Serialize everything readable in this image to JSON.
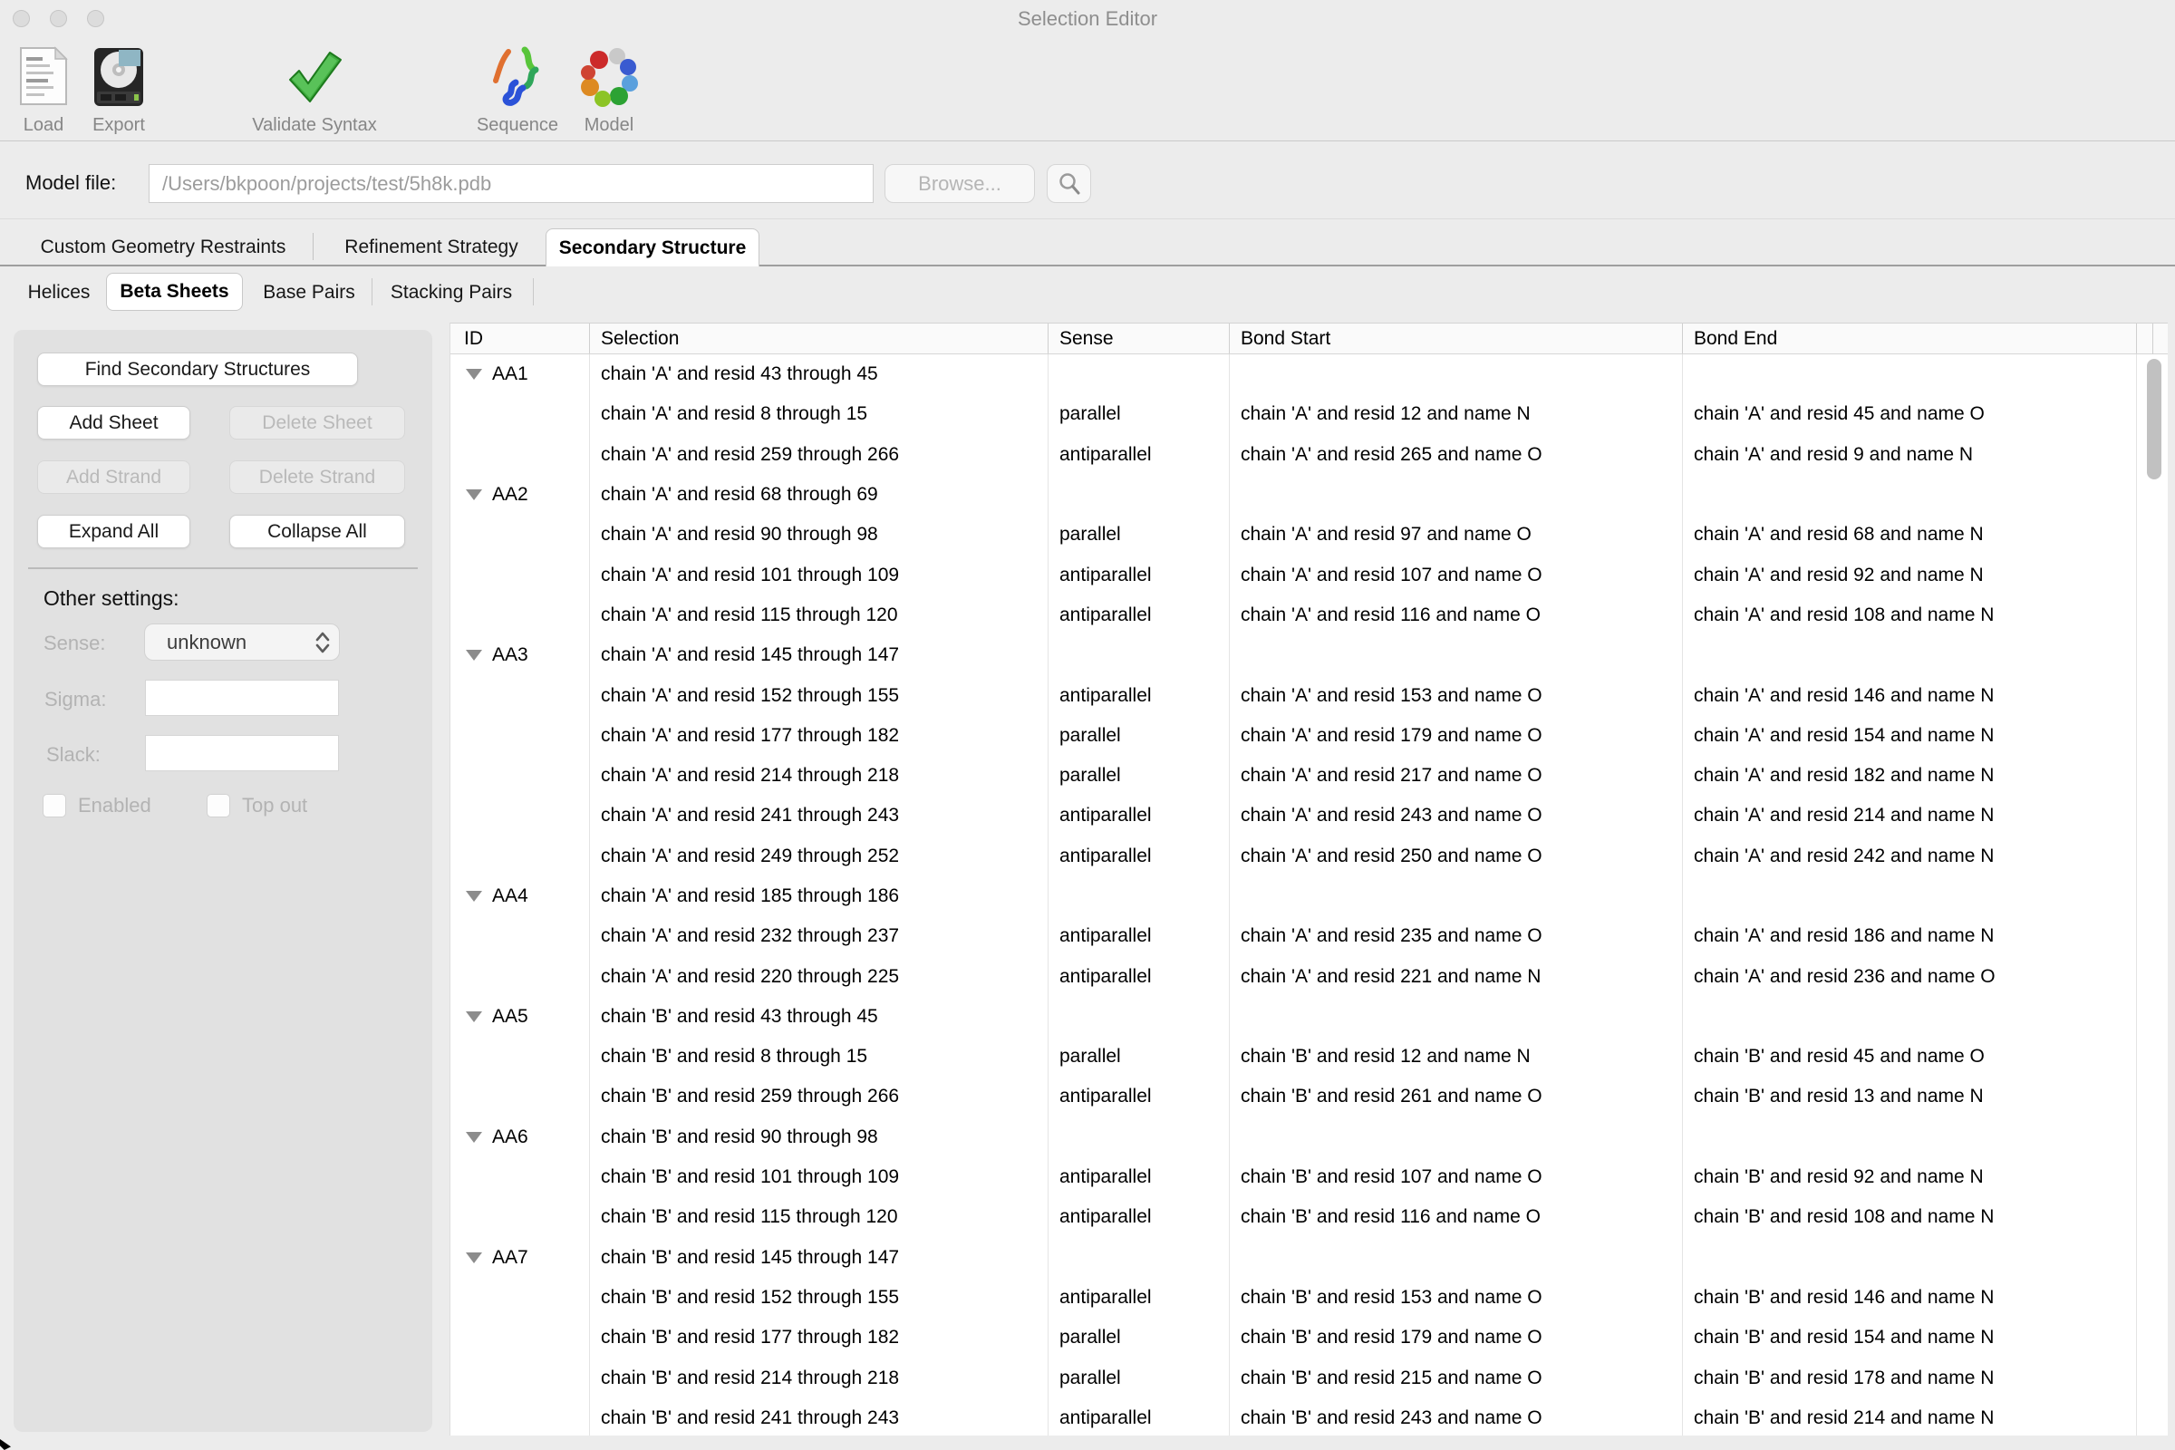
{
  "window": {
    "title": "Selection Editor"
  },
  "toolbar": {
    "items": [
      {
        "label": "Load",
        "icon": "document-icon"
      },
      {
        "label": "Export",
        "icon": "harddrive-icon"
      },
      {
        "label": "Validate Syntax",
        "icon": "green-checkmark-icon"
      },
      {
        "label": "Sequence",
        "icon": "sequence-ribbon-icon"
      },
      {
        "label": "Model",
        "icon": "molecule-model-icon"
      }
    ]
  },
  "model_file": {
    "label": "Model file:",
    "value": "/Users/bkpoon/projects/test/5h8k.pdb",
    "browse_label": "Browse...",
    "search_icon": "magnifier-icon"
  },
  "tabs": {
    "items": [
      "Custom Geometry Restraints",
      "Refinement Strategy",
      "Secondary Structure"
    ],
    "selected": "Secondary Structure"
  },
  "subtabs": {
    "items": [
      "Helices",
      "Beta Sheets",
      "Base Pairs",
      "Stacking Pairs"
    ],
    "selected": "Beta Sheets"
  },
  "sidebar": {
    "find_button": "Find Secondary Structures",
    "add_sheet": "Add Sheet",
    "delete_sheet": "Delete Sheet",
    "add_strand": "Add Strand",
    "delete_strand": "Delete Strand",
    "expand_all": "Expand All",
    "collapse_all": "Collapse All",
    "other_settings_label": "Other settings:",
    "sense_label": "Sense:",
    "sense_value": "unknown",
    "sigma_label": "Sigma:",
    "sigma_value": "",
    "slack_label": "Slack:",
    "slack_value": "",
    "enabled_label": "Enabled",
    "enabled_checked": false,
    "top_out_label": "Top out",
    "top_out_checked": false
  },
  "table": {
    "columns": [
      "ID",
      "Selection",
      "Sense",
      "Bond Start",
      "Bond End"
    ],
    "rows": [
      {
        "id": "AA1",
        "selection": "chain 'A' and resid 43 through 45",
        "sense": "",
        "bond_start": "",
        "bond_end": ""
      },
      {
        "id": "",
        "selection": "chain 'A' and resid 8 through 15",
        "sense": "parallel",
        "bond_start": "chain 'A' and resid 12 and name N",
        "bond_end": "chain 'A' and resid 45 and name O"
      },
      {
        "id": "",
        "selection": "chain 'A' and resid 259 through 266",
        "sense": "antiparallel",
        "bond_start": "chain 'A' and resid 265 and name O",
        "bond_end": "chain 'A' and resid 9 and name N"
      },
      {
        "id": "AA2",
        "selection": "chain 'A' and resid 68 through 69",
        "sense": "",
        "bond_start": "",
        "bond_end": ""
      },
      {
        "id": "",
        "selection": "chain 'A' and resid 90 through 98",
        "sense": "parallel",
        "bond_start": "chain 'A' and resid 97 and name O",
        "bond_end": "chain 'A' and resid 68 and name N"
      },
      {
        "id": "",
        "selection": "chain 'A' and resid 101 through 109",
        "sense": "antiparallel",
        "bond_start": "chain 'A' and resid 107 and name O",
        "bond_end": "chain 'A' and resid 92 and name N"
      },
      {
        "id": "",
        "selection": "chain 'A' and resid 115 through 120",
        "sense": "antiparallel",
        "bond_start": "chain 'A' and resid 116 and name O",
        "bond_end": "chain 'A' and resid 108 and name N"
      },
      {
        "id": "AA3",
        "selection": "chain 'A' and resid 145 through 147",
        "sense": "",
        "bond_start": "",
        "bond_end": ""
      },
      {
        "id": "",
        "selection": "chain 'A' and resid 152 through 155",
        "sense": "antiparallel",
        "bond_start": "chain 'A' and resid 153 and name O",
        "bond_end": "chain 'A' and resid 146 and name N"
      },
      {
        "id": "",
        "selection": "chain 'A' and resid 177 through 182",
        "sense": "parallel",
        "bond_start": "chain 'A' and resid 179 and name O",
        "bond_end": "chain 'A' and resid 154 and name N"
      },
      {
        "id": "",
        "selection": "chain 'A' and resid 214 through 218",
        "sense": "parallel",
        "bond_start": "chain 'A' and resid 217 and name O",
        "bond_end": "chain 'A' and resid 182 and name N"
      },
      {
        "id": "",
        "selection": "chain 'A' and resid 241 through 243",
        "sense": "antiparallel",
        "bond_start": "chain 'A' and resid 243 and name O",
        "bond_end": "chain 'A' and resid 214 and name N"
      },
      {
        "id": "",
        "selection": "chain 'A' and resid 249 through 252",
        "sense": "antiparallel",
        "bond_start": "chain 'A' and resid 250 and name O",
        "bond_end": "chain 'A' and resid 242 and name N"
      },
      {
        "id": "AA4",
        "selection": "chain 'A' and resid 185 through 186",
        "sense": "",
        "bond_start": "",
        "bond_end": ""
      },
      {
        "id": "",
        "selection": "chain 'A' and resid 232 through 237",
        "sense": "antiparallel",
        "bond_start": "chain 'A' and resid 235 and name O",
        "bond_end": "chain 'A' and resid 186 and name N"
      },
      {
        "id": "",
        "selection": "chain 'A' and resid 220 through 225",
        "sense": "antiparallel",
        "bond_start": "chain 'A' and resid 221 and name N",
        "bond_end": "chain 'A' and resid 236 and name O"
      },
      {
        "id": "AA5",
        "selection": "chain 'B' and resid 43 through 45",
        "sense": "",
        "bond_start": "",
        "bond_end": ""
      },
      {
        "id": "",
        "selection": "chain 'B' and resid 8 through 15",
        "sense": "parallel",
        "bond_start": "chain 'B' and resid 12 and name N",
        "bond_end": "chain 'B' and resid 45 and name O"
      },
      {
        "id": "",
        "selection": "chain 'B' and resid 259 through 266",
        "sense": "antiparallel",
        "bond_start": "chain 'B' and resid 261 and name O",
        "bond_end": "chain 'B' and resid 13 and name N"
      },
      {
        "id": "AA6",
        "selection": "chain 'B' and resid 90 through 98",
        "sense": "",
        "bond_start": "",
        "bond_end": ""
      },
      {
        "id": "",
        "selection": "chain 'B' and resid 101 through 109",
        "sense": "antiparallel",
        "bond_start": "chain 'B' and resid 107 and name O",
        "bond_end": "chain 'B' and resid 92 and name N"
      },
      {
        "id": "",
        "selection": "chain 'B' and resid 115 through 120",
        "sense": "antiparallel",
        "bond_start": "chain 'B' and resid 116 and name O",
        "bond_end": "chain 'B' and resid 108 and name N"
      },
      {
        "id": "AA7",
        "selection": "chain 'B' and resid 145 through 147",
        "sense": "",
        "bond_start": "",
        "bond_end": ""
      },
      {
        "id": "",
        "selection": "chain 'B' and resid 152 through 155",
        "sense": "antiparallel",
        "bond_start": "chain 'B' and resid 153 and name O",
        "bond_end": "chain 'B' and resid 146 and name N"
      },
      {
        "id": "",
        "selection": "chain 'B' and resid 177 through 182",
        "sense": "parallel",
        "bond_start": "chain 'B' and resid 179 and name O",
        "bond_end": "chain 'B' and resid 154 and name N"
      },
      {
        "id": "",
        "selection": "chain 'B' and resid 214 through 218",
        "sense": "parallel",
        "bond_start": "chain 'B' and resid 215 and name O",
        "bond_end": "chain 'B' and resid 178 and name N"
      },
      {
        "id": "",
        "selection": "chain 'B' and resid 241 through 243",
        "sense": "antiparallel",
        "bond_start": "chain 'B' and resid 243 and name O",
        "bond_end": "chain 'B' and resid 214 and name N"
      }
    ]
  }
}
